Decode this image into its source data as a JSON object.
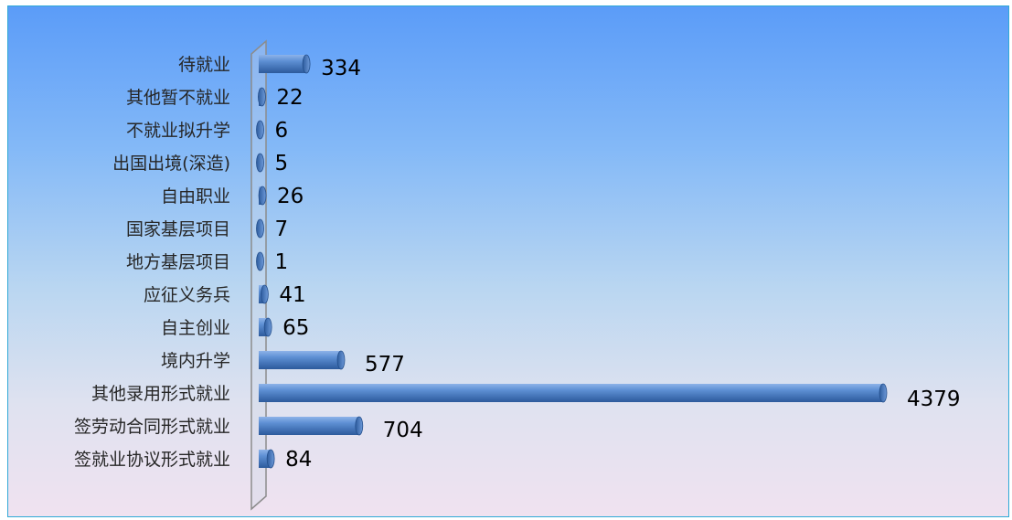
{
  "chart_data": {
    "type": "bar",
    "orientation": "horizontal",
    "categories": [
      "待就业",
      "其他暂不就业",
      "不就业拟升学",
      "出国出境(深造)",
      "自由职业",
      "国家基层项目",
      "地方基层项目",
      "应征义务兵",
      "自主创业",
      "境内升学",
      "其他录用形式就业",
      "签劳动合同形式就业",
      "签就业协议形式就业"
    ],
    "values": [
      334,
      22,
      6,
      5,
      26,
      7,
      1,
      41,
      65,
      577,
      4379,
      704,
      84
    ],
    "value_labels": [
      "334",
      "22",
      "6",
      "5",
      "26",
      "7",
      "1",
      "41",
      "65",
      "577",
      "4379",
      "704",
      "84"
    ],
    "xlim": [
      0,
      4379
    ],
    "bar_color": "#4f81bd",
    "grid": false,
    "legend": "none"
  }
}
